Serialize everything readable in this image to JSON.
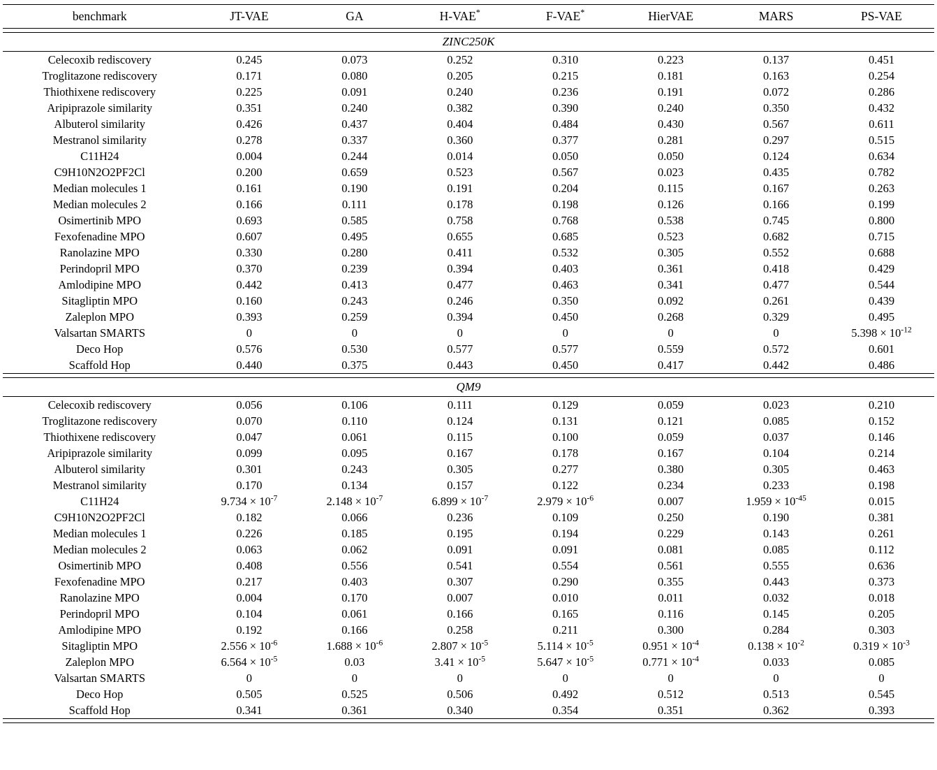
{
  "table": {
    "columns": [
      "benchmark",
      "JT-VAE",
      "GA",
      "H-VAE*",
      "F-VAE*",
      "HierVAE",
      "MARS",
      "PS-VAE"
    ],
    "sections": [
      {
        "title": "ZINC250K",
        "rows": [
          {
            "name": "Celecoxib rediscovery",
            "values": [
              "0.245",
              "0.073",
              "0.252",
              "0.310",
              "0.223",
              "0.137",
              "0.451"
            ],
            "bold": [
              6
            ]
          },
          {
            "name": "Troglitazone rediscovery",
            "values": [
              "0.171",
              "0.080",
              "0.205",
              "0.215",
              "0.181",
              "0.163",
              "0.254"
            ],
            "bold": [
              6
            ]
          },
          {
            "name": "Thiothixene rediscovery",
            "values": [
              "0.225",
              "0.091",
              "0.240",
              "0.236",
              "0.191",
              "0.072",
              "0.286"
            ],
            "bold": [
              6
            ]
          },
          {
            "name": "Aripiprazole similarity",
            "values": [
              "0.351",
              "0.240",
              "0.382",
              "0.390",
              "0.240",
              "0.350",
              "0.432"
            ],
            "bold": [
              6
            ]
          },
          {
            "name": "Albuterol similarity",
            "values": [
              "0.426",
              "0.437",
              "0.404",
              "0.484",
              "0.430",
              "0.567",
              "0.611"
            ],
            "bold": [
              6
            ]
          },
          {
            "name": "Mestranol similarity",
            "values": [
              "0.278",
              "0.337",
              "0.360",
              "0.377",
              "0.281",
              "0.297",
              "0.515"
            ],
            "bold": [
              6
            ]
          },
          {
            "name": "C11H24",
            "values": [
              "0.004",
              "0.244",
              "0.014",
              "0.050",
              "0.050",
              "0.124",
              "0.634"
            ],
            "bold": [
              6
            ]
          },
          {
            "name": "C9H10N2O2PF2Cl",
            "values": [
              "0.200",
              "0.659",
              "0.523",
              "0.567",
              "0.023",
              "0.435",
              "0.782"
            ],
            "bold": [
              6
            ]
          },
          {
            "name": "Median molecules 1",
            "values": [
              "0.161",
              "0.190",
              "0.191",
              "0.204",
              "0.115",
              "0.167",
              "0.263"
            ],
            "bold": [
              6
            ]
          },
          {
            "name": "Median molecules 2",
            "values": [
              "0.166",
              "0.111",
              "0.178",
              "0.198",
              "0.126",
              "0.166",
              "0.199"
            ],
            "bold": [
              6
            ]
          },
          {
            "name": "Osimertinib MPO",
            "values": [
              "0.693",
              "0.585",
              "0.758",
              "0.768",
              "0.538",
              "0.745",
              "0.800"
            ],
            "bold": [
              6
            ]
          },
          {
            "name": "Fexofenadine MPO",
            "values": [
              "0.607",
              "0.495",
              "0.655",
              "0.685",
              "0.523",
              "0.682",
              "0.715"
            ],
            "bold": [
              6
            ]
          },
          {
            "name": "Ranolazine MPO",
            "values": [
              "0.330",
              "0.280",
              "0.411",
              "0.532",
              "0.305",
              "0.552",
              "0.688"
            ],
            "bold": [
              6
            ]
          },
          {
            "name": "Perindopril MPO",
            "values": [
              "0.370",
              "0.239",
              "0.394",
              "0.403",
              "0.361",
              "0.418",
              "0.429"
            ],
            "bold": [
              6
            ]
          },
          {
            "name": "Amlodipine MPO",
            "values": [
              "0.442",
              "0.413",
              "0.477",
              "0.463",
              "0.341",
              "0.477",
              "0.544"
            ],
            "bold": [
              6
            ]
          },
          {
            "name": "Sitagliptin MPO",
            "values": [
              "0.160",
              "0.243",
              "0.246",
              "0.350",
              "0.092",
              "0.261",
              "0.439"
            ],
            "bold": [
              6
            ]
          },
          {
            "name": "Zaleplon MPO",
            "values": [
              "0.393",
              "0.259",
              "0.394",
              "0.450",
              "0.268",
              "0.329",
              "0.495"
            ],
            "bold": [
              6
            ]
          },
          {
            "name": "Valsartan SMARTS",
            "values": [
              "0",
              "0",
              "0",
              "0",
              "0",
              "0",
              "5.398 × 10^-12"
            ],
            "bold": []
          },
          {
            "name": "Deco Hop",
            "values": [
              "0.576",
              "0.530",
              "0.577",
              "0.577",
              "0.559",
              "0.572",
              "0.601"
            ],
            "bold": [
              6
            ]
          },
          {
            "name": "Scaffold Hop",
            "values": [
              "0.440",
              "0.375",
              "0.443",
              "0.450",
              "0.417",
              "0.442",
              "0.486"
            ],
            "bold": [
              6
            ]
          }
        ]
      },
      {
        "title": "QM9",
        "rows": [
          {
            "name": "Celecoxib rediscovery",
            "values": [
              "0.056",
              "0.106",
              "0.111",
              "0.129",
              "0.059",
              "0.023",
              "0.210"
            ],
            "bold": [
              6
            ]
          },
          {
            "name": "Troglitazone rediscovery",
            "values": [
              "0.070",
              "0.110",
              "0.124",
              "0.131",
              "0.121",
              "0.085",
              "0.152"
            ],
            "bold": [
              6
            ]
          },
          {
            "name": "Thiothixene rediscovery",
            "values": [
              "0.047",
              "0.061",
              "0.115",
              "0.100",
              "0.059",
              "0.037",
              "0.146"
            ],
            "bold": [
              6
            ]
          },
          {
            "name": "Aripiprazole similarity",
            "values": [
              "0.099",
              "0.095",
              "0.167",
              "0.178",
              "0.167",
              "0.104",
              "0.214"
            ],
            "bold": [
              6
            ]
          },
          {
            "name": "Albuterol similarity",
            "values": [
              "0.301",
              "0.243",
              "0.305",
              "0.277",
              "0.380",
              "0.305",
              "0.463"
            ],
            "bold": [
              6
            ]
          },
          {
            "name": "Mestranol similarity",
            "values": [
              "0.170",
              "0.134",
              "0.157",
              "0.122",
              "0.234",
              "0.233",
              "0.198"
            ],
            "bold": [
              4
            ]
          },
          {
            "name": "C11H24",
            "values": [
              "9.734 × 10^-7",
              "2.148 × 10^-7",
              "6.899 × 10^-7",
              "2.979 × 10^-6",
              "0.007",
              "1.959 × 10^-45",
              "0.015"
            ],
            "bold": [
              6
            ]
          },
          {
            "name": "C9H10N2O2PF2Cl",
            "values": [
              "0.182",
              "0.066",
              "0.236",
              "0.109",
              "0.250",
              "0.190",
              "0.381"
            ],
            "bold": [
              6
            ]
          },
          {
            "name": "Median molecules 1",
            "values": [
              "0.226",
              "0.185",
              "0.195",
              "0.194",
              "0.229",
              "0.143",
              "0.261"
            ],
            "bold": [
              6
            ]
          },
          {
            "name": "Median molecules 2",
            "values": [
              "0.063",
              "0.062",
              "0.091",
              "0.091",
              "0.081",
              "0.085",
              "0.112"
            ],
            "bold": [
              6
            ]
          },
          {
            "name": "Osimertinib MPO",
            "values": [
              "0.408",
              "0.556",
              "0.541",
              "0.554",
              "0.561",
              "0.555",
              "0.636"
            ],
            "bold": [
              6
            ]
          },
          {
            "name": "Fexofenadine MPO",
            "values": [
              "0.217",
              "0.403",
              "0.307",
              "0.290",
              "0.355",
              "0.443",
              "0.373"
            ],
            "bold": [
              5
            ]
          },
          {
            "name": "Ranolazine MPO",
            "values": [
              "0.004",
              "0.170",
              "0.007",
              "0.010",
              "0.011",
              "0.032",
              "0.018"
            ],
            "bold": [
              1
            ]
          },
          {
            "name": "Perindopril MPO",
            "values": [
              "0.104",
              "0.061",
              "0.166",
              "0.165",
              "0.116",
              "0.145",
              "0.205"
            ],
            "bold": [
              6
            ]
          },
          {
            "name": "Amlodipine MPO",
            "values": [
              "0.192",
              "0.166",
              "0.258",
              "0.211",
              "0.300",
              "0.284",
              "0.303"
            ],
            "bold": [
              6
            ]
          },
          {
            "name": "Sitagliptin MPO",
            "values": [
              "2.556 × 10^-6",
              "1.688 × 10^-6",
              "2.807 × 10^-5",
              "5.114 × 10^-5",
              "0.951 × 10^-4",
              "0.138 × 10^-2",
              "0.319 × 10^-3"
            ],
            "bold": []
          },
          {
            "name": "Zaleplon MPO",
            "values": [
              "6.564 × 10^-5",
              "0.03",
              "3.41 × 10^-5",
              "5.647 × 10^-5",
              "0.771 × 10^-4",
              "0.033",
              "0.085"
            ],
            "bold": [
              6
            ]
          },
          {
            "name": "Valsartan SMARTS",
            "values": [
              "0",
              "0",
              "0",
              "0",
              "0",
              "0",
              "0"
            ],
            "bold": []
          },
          {
            "name": "Deco Hop",
            "values": [
              "0.505",
              "0.525",
              "0.506",
              "0.492",
              "0.512",
              "0.513",
              "0.545"
            ],
            "bold": [
              6
            ]
          },
          {
            "name": "Scaffold Hop",
            "values": [
              "0.341",
              "0.361",
              "0.340",
              "0.354",
              "0.351",
              "0.362",
              "0.393"
            ],
            "bold": [
              6
            ]
          }
        ]
      }
    ]
  }
}
